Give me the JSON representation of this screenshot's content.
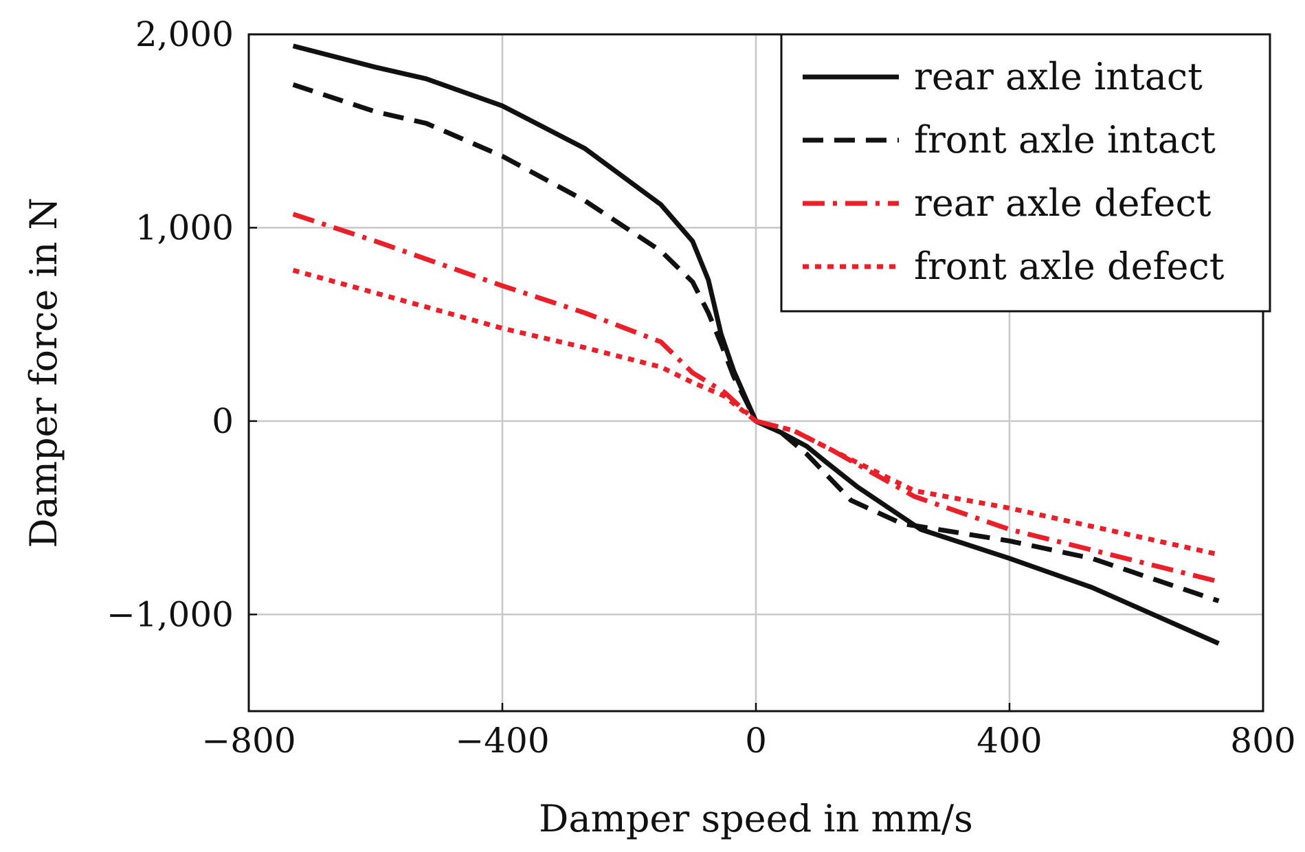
{
  "chart_data": {
    "type": "line",
    "title": "",
    "xlabel": "Damper speed in mm/s",
    "ylabel": "Damper force in N",
    "xlim": [
      -800,
      800
    ],
    "ylim": [
      -1500,
      2000
    ],
    "xticks": [
      -800,
      -400,
      0,
      400,
      800
    ],
    "xtick_labels": [
      "−800",
      "−400",
      "0",
      "400",
      "800"
    ],
    "yticks": [
      -1000,
      0,
      1000,
      2000
    ],
    "ytick_labels": [
      "−1,000",
      "0",
      "1,000",
      "2,000"
    ],
    "grid": true,
    "legend_position": "top-right",
    "series": [
      {
        "name": "rear axle intact",
        "color": "#111111",
        "dash": "solid",
        "points": [
          [
            -730,
            1940
          ],
          [
            -600,
            1830
          ],
          [
            -520,
            1770
          ],
          [
            -400,
            1630
          ],
          [
            -270,
            1410
          ],
          [
            -150,
            1120
          ],
          [
            -100,
            930
          ],
          [
            -75,
            730
          ],
          [
            -55,
            450
          ],
          [
            -35,
            260
          ],
          [
            -15,
            110
          ],
          [
            0,
            0
          ],
          [
            40,
            -60
          ],
          [
            80,
            -130
          ],
          [
            110,
            -210
          ],
          [
            160,
            -340
          ],
          [
            260,
            -560
          ],
          [
            400,
            -710
          ],
          [
            530,
            -860
          ],
          [
            730,
            -1150
          ]
        ]
      },
      {
        "name": "front axle intact",
        "color": "#111111",
        "dash": "dashed",
        "points": [
          [
            -730,
            1740
          ],
          [
            -600,
            1600
          ],
          [
            -520,
            1540
          ],
          [
            -400,
            1370
          ],
          [
            -270,
            1140
          ],
          [
            -150,
            880
          ],
          [
            -100,
            720
          ],
          [
            -75,
            560
          ],
          [
            -55,
            400
          ],
          [
            -35,
            230
          ],
          [
            -15,
            100
          ],
          [
            0,
            0
          ],
          [
            40,
            -60
          ],
          [
            80,
            -170
          ],
          [
            150,
            -410
          ],
          [
            230,
            -530
          ],
          [
            400,
            -620
          ],
          [
            530,
            -710
          ],
          [
            730,
            -930
          ]
        ]
      },
      {
        "name": "rear axle defect",
        "color": "#e8202a",
        "dash": "dashdot",
        "points": [
          [
            -730,
            1070
          ],
          [
            -600,
            930
          ],
          [
            -400,
            700
          ],
          [
            -270,
            560
          ],
          [
            -150,
            410
          ],
          [
            -100,
            250
          ],
          [
            -50,
            150
          ],
          [
            0,
            0
          ],
          [
            60,
            -50
          ],
          [
            120,
            -150
          ],
          [
            250,
            -390
          ],
          [
            400,
            -560
          ],
          [
            730,
            -830
          ]
        ]
      },
      {
        "name": "front axle defect",
        "color": "#e8202a",
        "dash": "dotted",
        "points": [
          [
            -730,
            780
          ],
          [
            -520,
            590
          ],
          [
            -400,
            480
          ],
          [
            -270,
            380
          ],
          [
            -150,
            280
          ],
          [
            -100,
            200
          ],
          [
            -50,
            130
          ],
          [
            0,
            0
          ],
          [
            60,
            -50
          ],
          [
            120,
            -150
          ],
          [
            250,
            -360
          ],
          [
            400,
            -450
          ],
          [
            730,
            -690
          ]
        ]
      }
    ]
  }
}
